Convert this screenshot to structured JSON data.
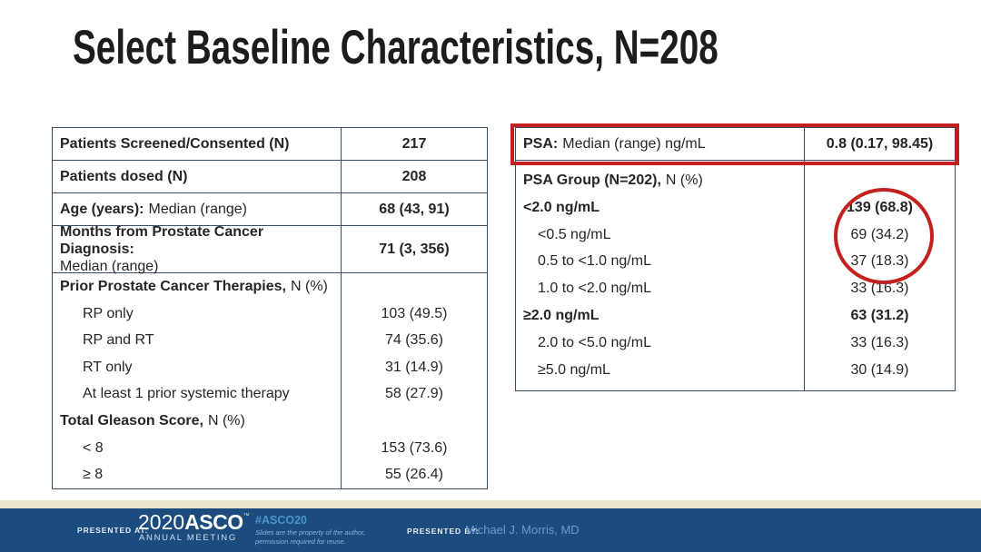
{
  "slide": {
    "title": "Select Baseline Characteristics, N=208"
  },
  "left_table": {
    "rows": [
      {
        "bold": "Patients Screened/Consented (N)",
        "rest": "",
        "value": "217"
      },
      {
        "bold": "Patients dosed (N)",
        "rest": "",
        "value": "208"
      },
      {
        "bold": "Age (years):",
        "rest": "Median (range)",
        "value": "68 (43, 91)"
      },
      {
        "bold": "Months from Prostate Cancer Diagnosis:",
        "rest": "Median (range)",
        "value": "71 (3, 356)"
      }
    ],
    "block": [
      {
        "bold": "Prior Prostate Cancer Therapies,",
        "rest": "N (%)",
        "value": ""
      },
      {
        "label": "RP only",
        "value": "103 (49.5)"
      },
      {
        "label": "RP and RT",
        "value": "74 (35.6)"
      },
      {
        "label": "RT only",
        "value": "31 (14.9)"
      },
      {
        "label": "At least 1 prior systemic therapy",
        "value": "58 (27.9)"
      },
      {
        "bold": "Total Gleason Score,",
        "rest": "N (%)",
        "value": ""
      },
      {
        "label": "< 8",
        "value": "153 (73.6)"
      },
      {
        "label": "≥ 8",
        "value": "55 (26.4)"
      }
    ]
  },
  "right_table": {
    "psa_row": {
      "bold": "PSA:",
      "rest": "Median (range) ng/mL",
      "value": "0.8 (0.17, 98.45)"
    },
    "block": [
      {
        "bold": "PSA Group (N=202),",
        "rest": "N (%)",
        "value": ""
      },
      {
        "label": "<2.0 ng/mL",
        "value": "139 (68.8)"
      },
      {
        "label": "<0.5 ng/mL",
        "value": "69 (34.2)"
      },
      {
        "label": "0.5 to <1.0 ng/mL",
        "value": "37 (18.3)"
      },
      {
        "label": "1.0 to <2.0 ng/mL",
        "value": "33 (16.3)"
      },
      {
        "label": "≥2.0 ng/mL",
        "value": "63 (31.2)"
      },
      {
        "label": "2.0 to <5.0 ng/mL",
        "value": "33 (16.3)"
      },
      {
        "label": "≥5.0 ng/mL",
        "value": "30 (14.9)"
      }
    ]
  },
  "footer": {
    "presented_at_label": "PRESENTED AT:",
    "logo_year": "2020",
    "logo_name": "ASCO",
    "logo_trademark": "™",
    "logo_sub": "ANNUAL MEETING",
    "hashtag": "#ASCO20",
    "disclaimer_line1": "Slides are the property of the author,",
    "disclaimer_line2": "permission required for reuse.",
    "presented_by_label": "PRESENTED BY:",
    "presenter": "Michael J. Morris, MD"
  },
  "colors": {
    "accent_red": "#c42020",
    "table_border": "#3e4d66",
    "footer_blue": "#1c4b7e",
    "footer_cream": "#ece5cd",
    "footer_link_blue": "#4d94cc"
  }
}
